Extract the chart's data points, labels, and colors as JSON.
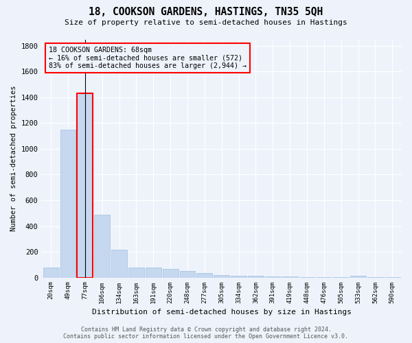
{
  "title": "18, COOKSON GARDENS, HASTINGS, TN35 5QH",
  "subtitle": "Size of property relative to semi-detached houses in Hastings",
  "xlabel": "Distribution of semi-detached houses by size in Hastings",
  "ylabel": "Number of semi-detached properties",
  "categories": [
    "20sqm",
    "49sqm",
    "77sqm",
    "106sqm",
    "134sqm",
    "163sqm",
    "191sqm",
    "220sqm",
    "248sqm",
    "277sqm",
    "305sqm",
    "334sqm",
    "362sqm",
    "391sqm",
    "419sqm",
    "448sqm",
    "476sqm",
    "505sqm",
    "533sqm",
    "562sqm",
    "590sqm"
  ],
  "values": [
    75,
    1150,
    1430,
    490,
    215,
    80,
    75,
    65,
    50,
    35,
    20,
    15,
    12,
    10,
    8,
    5,
    3,
    2,
    15,
    2,
    2
  ],
  "bar_color": "#c5d8f0",
  "bar_edgecolor": "#a0bfde",
  "highlight_bar_index": 2,
  "highlight_bar_edgecolor": "red",
  "annotation_text": "18 COOKSON GARDENS: 68sqm\n← 16% of semi-detached houses are smaller (572)\n83% of semi-detached houses are larger (2,944) →",
  "annotation_box_edgecolor": "red",
  "background_color": "#eef3fb",
  "grid_color": "white",
  "ylim": [
    0,
    1850
  ],
  "yticks": [
    0,
    200,
    400,
    600,
    800,
    1000,
    1200,
    1400,
    1600,
    1800
  ],
  "footer_line1": "Contains HM Land Registry data © Crown copyright and database right 2024.",
  "footer_line2": "Contains public sector information licensed under the Open Government Licence v3.0."
}
